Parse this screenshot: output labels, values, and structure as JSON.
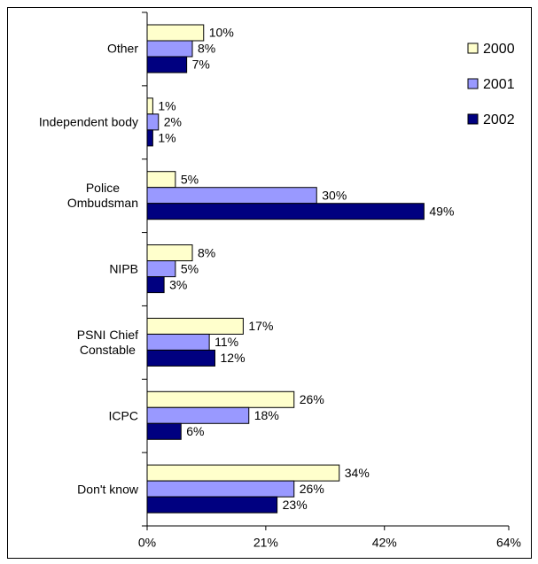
{
  "chart_data": {
    "type": "bar",
    "orientation": "horizontal",
    "categories": [
      "Other",
      "Independent body",
      "Police\nOmbudsman",
      "NIPB",
      "PSNI Chief\nConstable",
      "ICPC",
      "Don't know"
    ],
    "series": [
      {
        "name": "2000",
        "color": "#ffffcc",
        "values": [
          10,
          1,
          5,
          8,
          17,
          26,
          34
        ],
        "value_labels": [
          "10%",
          "1%",
          "5%",
          "8%",
          "17%",
          "26%",
          "34%"
        ]
      },
      {
        "name": "2001",
        "color": "#9999ff",
        "values": [
          8,
          2,
          30,
          5,
          11,
          18,
          26
        ],
        "value_labels": [
          "8%",
          "2%",
          "30%",
          "5%",
          "11%",
          "18%",
          "26%"
        ]
      },
      {
        "name": "2002",
        "color": "#000080",
        "values": [
          7,
          1,
          49,
          3,
          12,
          6,
          23
        ],
        "value_labels": [
          "7%",
          "1%",
          "49%",
          "3%",
          "12%",
          "6%",
          "23%"
        ]
      }
    ],
    "xlim": [
      0,
      64
    ],
    "xticks": [
      {
        "value": 0,
        "label": "0%"
      },
      {
        "value": 21,
        "label": "21%"
      },
      {
        "value": 42,
        "label": "42%"
      },
      {
        "value": 64,
        "label": "64%"
      }
    ],
    "legend": "top-right"
  }
}
